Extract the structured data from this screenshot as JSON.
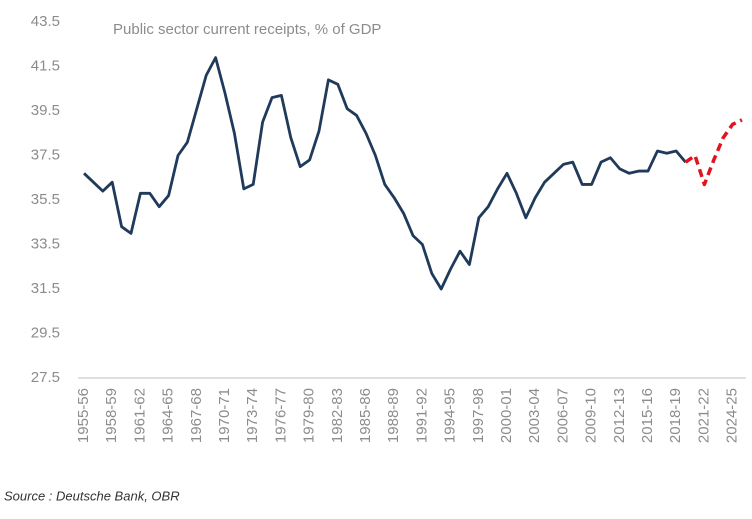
{
  "chart_data": {
    "type": "line",
    "title": "Public sector current receipts, % of GDP",
    "source": "Source : Deutsche Bank, OBR",
    "categories": [
      "1955-56",
      null,
      null,
      "1958-59",
      null,
      null,
      "1961-62",
      null,
      null,
      "1964-65",
      null,
      null,
      "1967-68",
      null,
      null,
      "1970-71",
      null,
      null,
      "1973-74",
      null,
      null,
      "1976-77",
      null,
      null,
      "1979-80",
      null,
      null,
      "1982-83",
      null,
      null,
      "1985-86",
      null,
      null,
      "1988-89",
      null,
      null,
      "1991-92",
      null,
      null,
      "1994-95",
      null,
      null,
      "1997-98",
      null,
      null,
      "2000-01",
      null,
      null,
      "2003-04",
      null,
      null,
      "2006-07",
      null,
      null,
      "2009-10",
      null,
      null,
      "2012-13",
      null,
      null,
      "2015-16",
      null,
      null,
      "2018-19",
      null,
      null,
      "2021-22",
      null,
      null,
      "2024-25",
      null
    ],
    "series": [
      {
        "color": "#1f3a5a",
        "dashed": false,
        "values": [
          36.7,
          36.3,
          35.9,
          36.3,
          34.3,
          34.0,
          35.8,
          35.8,
          35.2,
          35.7,
          37.5,
          38.1,
          39.6,
          41.1,
          41.9,
          40.3,
          38.5,
          36.0,
          36.2,
          39.0,
          40.1,
          40.2,
          38.3,
          37.0,
          37.3,
          38.6,
          40.9,
          40.7,
          39.6,
          39.3,
          38.5,
          37.5,
          36.2,
          35.6,
          34.9,
          33.9,
          33.5,
          32.2,
          31.5,
          32.4,
          33.2,
          32.6,
          34.7,
          35.2,
          36.0,
          36.7,
          35.8,
          34.7,
          35.6,
          36.3,
          36.7,
          37.1,
          37.2,
          36.2,
          36.2,
          37.2,
          37.4,
          36.9,
          36.7,
          36.8,
          36.8,
          37.7,
          37.6,
          37.7,
          37.2,
          null,
          null,
          null,
          null,
          null,
          null
        ]
      },
      {
        "color": "#e0141e",
        "dashed": true,
        "values": [
          null,
          null,
          null,
          null,
          null,
          null,
          null,
          null,
          null,
          null,
          null,
          null,
          null,
          null,
          null,
          null,
          null,
          null,
          null,
          null,
          null,
          null,
          null,
          null,
          null,
          null,
          null,
          null,
          null,
          null,
          null,
          null,
          null,
          null,
          null,
          null,
          null,
          null,
          null,
          null,
          null,
          null,
          null,
          null,
          null,
          null,
          null,
          null,
          null,
          null,
          null,
          null,
          null,
          null,
          null,
          null,
          null,
          null,
          null,
          null,
          null,
          null,
          null,
          null,
          37.2,
          37.5,
          36.2,
          37.3,
          38.3,
          38.9,
          39.1
        ]
      }
    ],
    "ylim": [
      27.5,
      43.5
    ],
    "yticks": [
      27.5,
      29.5,
      31.5,
      33.5,
      35.5,
      37.5,
      39.5,
      41.5,
      43.5
    ],
    "grid": false
  }
}
